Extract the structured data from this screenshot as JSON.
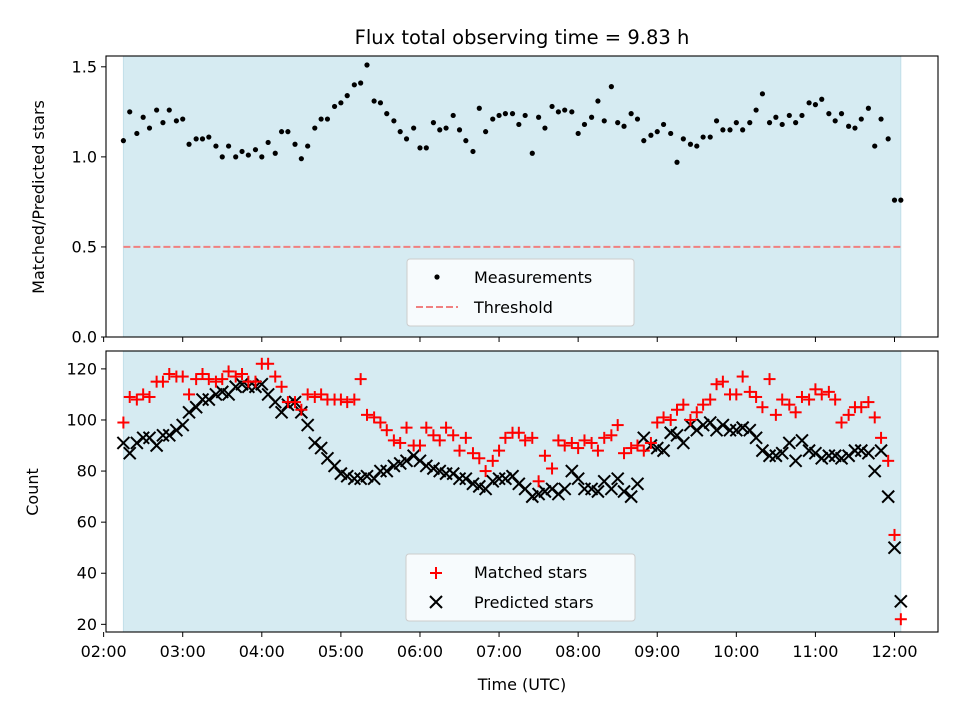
{
  "chart_data": [
    {
      "type": "scatter",
      "title": "Flux total observing time = 9.83 h",
      "ylabel": "Matched/Predicted stars",
      "xlabel": "",
      "xlim": [
        2.03,
        12.55
      ],
      "ylim": [
        0,
        1.56
      ],
      "yticks": [
        0.0,
        0.5,
        1.0,
        1.5
      ],
      "ytick_labels": [
        "0.0",
        "0.5",
        "1.0",
        "1.5"
      ],
      "observing_span": [
        2.25,
        12.08
      ],
      "threshold": 0.5,
      "legend": {
        "placement": "lower-center",
        "entries": [
          "Measurements",
          "Threshold"
        ]
      },
      "series": [
        {
          "name": "Measurements",
          "x": [
            2.25,
            2.33,
            2.42,
            2.5,
            2.58,
            2.67,
            2.75,
            2.83,
            2.92,
            3.0,
            3.08,
            3.17,
            3.25,
            3.33,
            3.42,
            3.5,
            3.58,
            3.67,
            3.75,
            3.83,
            3.92,
            4.0,
            4.08,
            4.17,
            4.25,
            4.33,
            4.42,
            4.5,
            4.58,
            4.67,
            4.75,
            4.83,
            4.92,
            5.0,
            5.08,
            5.17,
            5.25,
            5.33,
            5.42,
            5.5,
            5.58,
            5.67,
            5.75,
            5.83,
            5.92,
            6.0,
            6.08,
            6.17,
            6.25,
            6.33,
            6.42,
            6.5,
            6.58,
            6.67,
            6.75,
            6.83,
            6.92,
            7.0,
            7.08,
            7.17,
            7.25,
            7.33,
            7.42,
            7.5,
            7.58,
            7.67,
            7.75,
            7.83,
            7.92,
            8.0,
            8.08,
            8.17,
            8.25,
            8.33,
            8.42,
            8.5,
            8.58,
            8.67,
            8.75,
            8.83,
            8.92,
            9.0,
            9.08,
            9.17,
            9.25,
            9.33,
            9.42,
            9.5,
            9.58,
            9.67,
            9.75,
            9.83,
            9.92,
            10.0,
            10.08,
            10.17,
            10.25,
            10.33,
            10.42,
            10.5,
            10.58,
            10.67,
            10.75,
            10.83,
            10.92,
            11.0,
            11.08,
            11.17,
            11.25,
            11.33,
            11.42,
            11.5,
            11.58,
            11.67,
            11.75,
            11.83,
            11.92,
            12.0,
            12.08
          ],
          "y": [
            1.09,
            1.25,
            1.13,
            1.22,
            1.16,
            1.26,
            1.19,
            1.26,
            1.2,
            1.21,
            1.07,
            1.1,
            1.1,
            1.11,
            1.06,
            1.0,
            1.06,
            1.0,
            1.03,
            1.01,
            1.04,
            1.0,
            1.08,
            1.02,
            1.14,
            1.14,
            1.07,
            0.99,
            1.06,
            1.16,
            1.21,
            1.21,
            1.28,
            1.3,
            1.34,
            1.4,
            1.41,
            1.51,
            1.31,
            1.3,
            1.24,
            1.2,
            1.14,
            1.1,
            1.16,
            1.05,
            1.05,
            1.19,
            1.15,
            1.16,
            1.23,
            1.15,
            1.09,
            1.03,
            1.27,
            1.14,
            1.21,
            1.23,
            1.24,
            1.24,
            1.18,
            1.23,
            1.02,
            1.22,
            1.16,
            1.28,
            1.25,
            1.26,
            1.25,
            1.13,
            1.18,
            1.22,
            1.31,
            1.2,
            1.39,
            1.19,
            1.17,
            1.24,
            1.21,
            1.09,
            1.12,
            1.14,
            1.18,
            1.13,
            0.97,
            1.1,
            1.07,
            1.06,
            1.11,
            1.11,
            1.2,
            1.15,
            1.15,
            1.19,
            1.15,
            1.19,
            1.26,
            1.35,
            1.19,
            1.22,
            1.18,
            1.23,
            1.19,
            1.23,
            1.3,
            1.29,
            1.32,
            1.24,
            1.2,
            1.24,
            1.17,
            1.16,
            1.21,
            1.27,
            1.06,
            1.21,
            1.1,
            0.76,
            0.76
          ]
        }
      ]
    },
    {
      "type": "scatter",
      "title": "",
      "ylabel": "Count",
      "xlabel": "Time (UTC)",
      "xlim": [
        2.03,
        12.55
      ],
      "ylim": [
        17,
        127
      ],
      "yticks": [
        20,
        40,
        60,
        80,
        100,
        120
      ],
      "ytick_labels": [
        "20",
        "40",
        "60",
        "80",
        "100",
        "120"
      ],
      "xticks": [
        2,
        3,
        4,
        5,
        6,
        7,
        8,
        9,
        10,
        11,
        12
      ],
      "xtick_labels": [
        "02:00",
        "03:00",
        "04:00",
        "05:00",
        "06:00",
        "07:00",
        "08:00",
        "09:00",
        "10:00",
        "11:00",
        "12:00"
      ],
      "observing_span": [
        2.25,
        12.08
      ],
      "legend": {
        "placement": "lower-center",
        "entries": [
          "Matched stars",
          "Predicted stars"
        ]
      },
      "series": [
        {
          "name": "Matched stars",
          "x": [
            2.25,
            2.33,
            2.42,
            2.5,
            2.58,
            2.67,
            2.75,
            2.83,
            2.92,
            3.0,
            3.08,
            3.17,
            3.25,
            3.33,
            3.42,
            3.5,
            3.58,
            3.67,
            3.75,
            3.83,
            3.92,
            4.0,
            4.08,
            4.17,
            4.25,
            4.33,
            4.42,
            4.5,
            4.58,
            4.67,
            4.75,
            4.83,
            4.92,
            5.0,
            5.08,
            5.17,
            5.25,
            5.33,
            5.42,
            5.5,
            5.58,
            5.67,
            5.75,
            5.83,
            5.92,
            6.0,
            6.08,
            6.17,
            6.25,
            6.33,
            6.42,
            6.5,
            6.58,
            6.67,
            6.75,
            6.83,
            6.92,
            7.0,
            7.08,
            7.17,
            7.25,
            7.33,
            7.42,
            7.5,
            7.58,
            7.67,
            7.75,
            7.83,
            7.92,
            8.0,
            8.08,
            8.17,
            8.25,
            8.33,
            8.42,
            8.5,
            8.58,
            8.67,
            8.75,
            8.83,
            8.92,
            9.0,
            9.08,
            9.17,
            9.25,
            9.33,
            9.42,
            9.5,
            9.58,
            9.67,
            9.75,
            9.83,
            9.92,
            10.0,
            10.08,
            10.17,
            10.25,
            10.33,
            10.42,
            10.5,
            10.58,
            10.67,
            10.75,
            10.83,
            10.92,
            11.0,
            11.08,
            11.17,
            11.25,
            11.33,
            11.42,
            11.5,
            11.58,
            11.67,
            11.75,
            11.83,
            11.92,
            12.0,
            12.08
          ],
          "y": [
            99,
            109,
            108,
            110,
            109,
            115,
            115,
            118,
            117,
            117,
            110,
            116,
            118,
            116,
            115,
            116,
            119,
            117,
            118,
            115,
            115,
            122,
            122,
            117,
            113,
            107,
            107,
            104,
            110,
            109,
            110,
            108,
            108,
            108,
            107,
            108,
            116,
            102,
            101,
            99,
            96,
            92,
            91,
            97,
            90,
            90,
            97,
            94,
            92,
            97,
            94,
            88,
            93,
            87,
            85,
            80,
            84,
            88,
            93,
            95,
            95,
            92,
            93,
            76,
            86,
            81,
            92,
            90,
            91,
            89,
            92,
            91,
            88,
            93,
            94,
            98,
            87,
            89,
            90,
            88,
            91,
            99,
            101,
            100,
            104,
            106,
            100,
            103,
            106,
            108,
            114,
            115,
            110,
            110,
            117,
            111,
            109,
            105,
            116,
            102,
            108,
            106,
            103,
            109,
            108,
            112,
            110,
            111,
            108,
            99,
            102,
            105,
            105,
            107,
            101,
            93,
            84,
            55,
            22
          ]
        },
        {
          "name": "Predicted stars",
          "x": [
            2.25,
            2.33,
            2.42,
            2.5,
            2.58,
            2.67,
            2.75,
            2.83,
            2.92,
            3.0,
            3.08,
            3.17,
            3.25,
            3.33,
            3.42,
            3.5,
            3.58,
            3.67,
            3.75,
            3.83,
            3.92,
            4.0,
            4.08,
            4.17,
            4.25,
            4.33,
            4.42,
            4.5,
            4.58,
            4.67,
            4.75,
            4.83,
            4.92,
            5.0,
            5.08,
            5.17,
            5.25,
            5.33,
            5.42,
            5.5,
            5.58,
            5.67,
            5.75,
            5.83,
            5.92,
            6.0,
            6.08,
            6.17,
            6.25,
            6.33,
            6.42,
            6.5,
            6.58,
            6.67,
            6.75,
            6.83,
            6.92,
            7.0,
            7.08,
            7.17,
            7.25,
            7.33,
            7.42,
            7.5,
            7.58,
            7.67,
            7.75,
            7.83,
            7.92,
            8.0,
            8.08,
            8.17,
            8.25,
            8.33,
            8.42,
            8.5,
            8.58,
            8.67,
            8.75,
            8.83,
            8.92,
            9.0,
            9.08,
            9.17,
            9.25,
            9.33,
            9.42,
            9.5,
            9.58,
            9.67,
            9.75,
            9.83,
            9.92,
            10.0,
            10.08,
            10.17,
            10.25,
            10.33,
            10.42,
            10.5,
            10.58,
            10.67,
            10.75,
            10.83,
            10.92,
            11.0,
            11.08,
            11.17,
            11.25,
            11.33,
            11.42,
            11.5,
            11.58,
            11.67,
            11.75,
            11.83,
            11.92,
            12.0,
            12.08
          ],
          "y": [
            91,
            87,
            91,
            93,
            93,
            90,
            94,
            94,
            96,
            98,
            103,
            105,
            108,
            108,
            110,
            111,
            110,
            113,
            114,
            113,
            113,
            114,
            110,
            107,
            103,
            106,
            107,
            103,
            98,
            91,
            89,
            85,
            82,
            79,
            78,
            77,
            77,
            78,
            77,
            80,
            80,
            82,
            83,
            84,
            86,
            84,
            82,
            81,
            80,
            79,
            79,
            77,
            77,
            75,
            74,
            73,
            76,
            77,
            77,
            78,
            75,
            73,
            70,
            71,
            72,
            73,
            71,
            73,
            80,
            77,
            73,
            73,
            72,
            76,
            73,
            77,
            72,
            70,
            75,
            93,
            90,
            89,
            88,
            95,
            94,
            91,
            98,
            96,
            98,
            99,
            96,
            98,
            96,
            96,
            97,
            96,
            93,
            88,
            86,
            86,
            87,
            91,
            84,
            92,
            88,
            87,
            85,
            86,
            86,
            85,
            86,
            88,
            88,
            87,
            80,
            88,
            70,
            50,
            29
          ]
        }
      ]
    }
  ],
  "colors": {
    "span_fill": "#add8e6",
    "measurement_marker": "#000000",
    "threshold_line": "#f08080",
    "matched_marker": "#ff0000",
    "predicted_marker": "#000000"
  }
}
